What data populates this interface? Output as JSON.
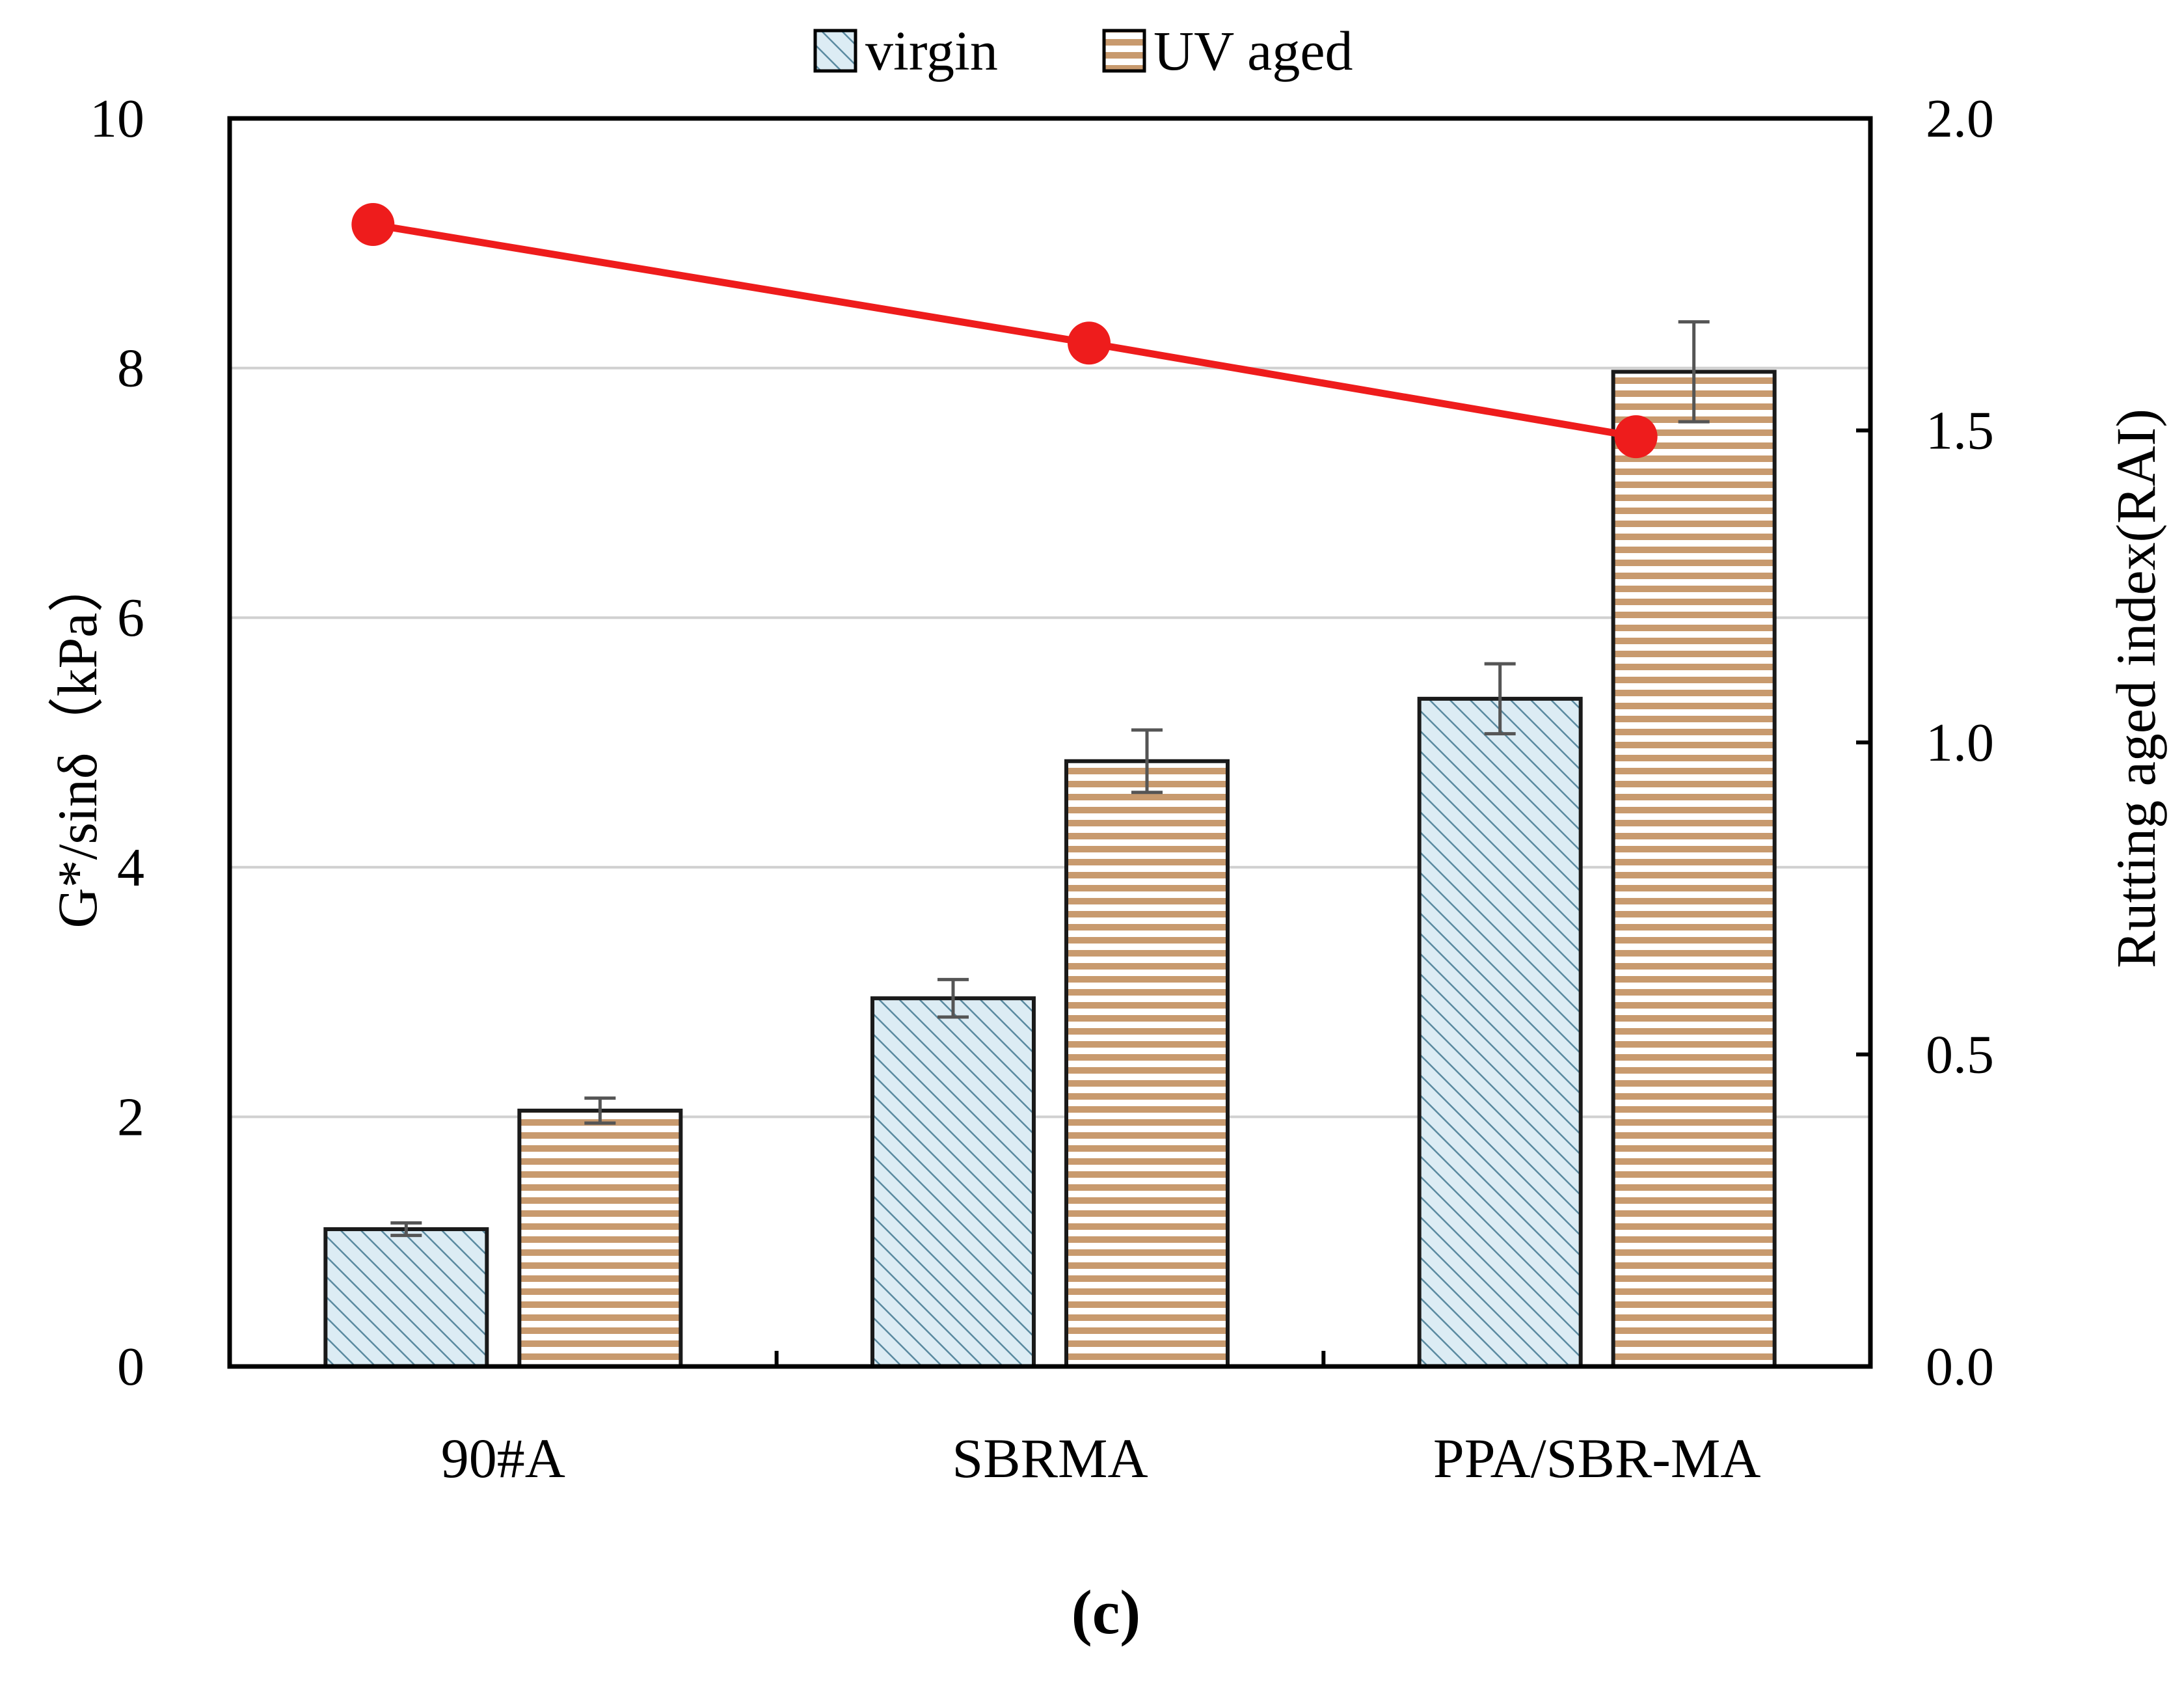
{
  "chart_data": {
    "type": "bar",
    "categories": [
      "90#A",
      "SBRMA",
      "PPA/SBR-MA"
    ],
    "series": [
      {
        "name": "virgin",
        "values": [
          1.1,
          2.95,
          5.35
        ],
        "errors": [
          0.05,
          0.15,
          0.28
        ],
        "axis": "left"
      },
      {
        "name": "UV aged",
        "values": [
          2.05,
          4.85,
          7.97
        ],
        "errors": [
          0.1,
          0.25,
          0.4
        ],
        "axis": "left"
      },
      {
        "name": "RAI",
        "type": "line",
        "values": [
          1.83,
          1.64,
          1.49
        ],
        "axis": "right",
        "color": "#ee1c1c"
      }
    ],
    "ylabel": "G*/sinδ（kPa）",
    "y2label": "Rutting aged index(RAI)",
    "ylim": [
      0,
      10
    ],
    "y2lim": [
      0,
      2.0
    ],
    "yticks": [
      "0",
      "2",
      "4",
      "6",
      "8",
      "10"
    ],
    "y2ticks": [
      "0.0",
      "0.5",
      "1.0",
      "1.5",
      "2.0"
    ],
    "legend": [
      "virgin",
      "UV aged"
    ],
    "caption": "(c)",
    "grid": true,
    "colors": {
      "virgin_fill": "#dcecf4",
      "virgin_hatch": "#5a8aa0",
      "aged_fill": "#ffffff",
      "aged_stripe": "#c89a6e",
      "line": "#ee1c1c",
      "grid": "#d0d0d0"
    }
  }
}
